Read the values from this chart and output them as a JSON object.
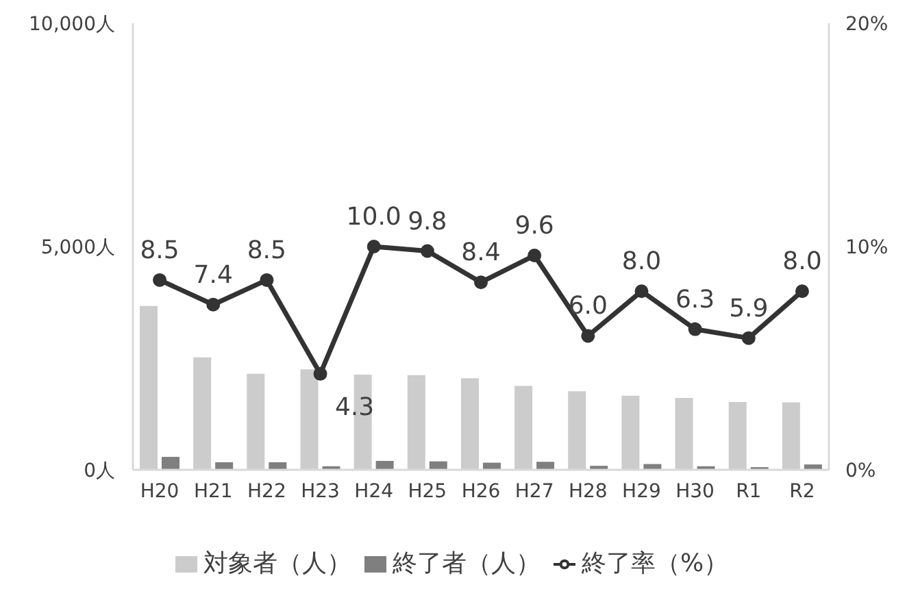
{
  "chart_data": {
    "type": "bar",
    "categories": [
      "H20",
      "H21",
      "H22",
      "H23",
      "H24",
      "H25",
      "H26",
      "H27",
      "H28",
      "H29",
      "H30",
      "R1",
      "R2"
    ],
    "series": [
      {
        "name": "対象者（人）",
        "color": "#cccccc",
        "values": [
          3670,
          2520,
          2150,
          2250,
          2130,
          2120,
          2050,
          1880,
          1760,
          1660,
          1610,
          1520,
          1510
        ]
      },
      {
        "name": "終了者（人）",
        "color": "#7f7f7f",
        "values": [
          290,
          170,
          170,
          80,
          200,
          190,
          160,
          180,
          90,
          130,
          80,
          60,
          120
        ]
      },
      {
        "name": "終了率（%）",
        "type": "line",
        "axis": "y2",
        "color": "#333333",
        "values": [
          8.5,
          7.4,
          8.5,
          4.3,
          10.0,
          9.8,
          8.4,
          9.6,
          6.0,
          8.0,
          6.3,
          5.9,
          8.0
        ],
        "value_labels": [
          "8.5",
          "7.4",
          "8.5",
          "4.3",
          "10.0",
          "9.8",
          "8.4",
          "9.6",
          "6.0",
          "8.0",
          "6.3",
          "5.9",
          "8.0"
        ]
      }
    ],
    "ylim": [
      0,
      10000
    ],
    "yticks": [
      {
        "value": 0,
        "label": "0人"
      },
      {
        "value": 5000,
        "label": "5,000人"
      },
      {
        "value": 10000,
        "label": "10,000人"
      }
    ],
    "y2lim": [
      0,
      20
    ],
    "y2ticks": [
      {
        "value": 0,
        "label": "0%"
      },
      {
        "value": 10,
        "label": "10%"
      },
      {
        "value": 20,
        "label": "20%"
      }
    ],
    "marker": "circle",
    "legend": "bottom"
  }
}
